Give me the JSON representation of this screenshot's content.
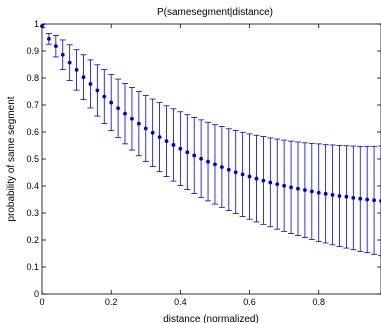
{
  "chart_data": {
    "type": "scatter",
    "title": "P(samesegment|distance)",
    "xlabel": "distance (normalized)",
    "ylabel": "probability of same segment",
    "xlim": [
      0,
      0.98
    ],
    "ylim": [
      0,
      1
    ],
    "xticks": [
      0,
      0.2,
      0.4,
      0.6,
      0.8
    ],
    "yticks": [
      0,
      0.1,
      0.2,
      0.3,
      0.4,
      0.5,
      0.6,
      0.7,
      0.8,
      0.9,
      1
    ],
    "xtick_labels": [
      "0",
      "0.2",
      "0.4",
      "0.6",
      "0.8"
    ],
    "ytick_labels": [
      "0",
      "0.1",
      "0.2",
      "0.3",
      "0.4",
      "0.5",
      "0.6",
      "0.7",
      "0.8",
      "0.9",
      "1"
    ],
    "grid": false,
    "color": "#0000cc",
    "series": [
      {
        "x": [
          0,
          0.02,
          0.04,
          0.06,
          0.08,
          0.1,
          0.12,
          0.14,
          0.16,
          0.18,
          0.2,
          0.22,
          0.24,
          0.26,
          0.28,
          0.3,
          0.32,
          0.34,
          0.36,
          0.38,
          0.4,
          0.42,
          0.44,
          0.46,
          0.48,
          0.5,
          0.52,
          0.54,
          0.56,
          0.58,
          0.6,
          0.62,
          0.64,
          0.66,
          0.68,
          0.7,
          0.72,
          0.74,
          0.76,
          0.78,
          0.8,
          0.82,
          0.84,
          0.86,
          0.88,
          0.9,
          0.92,
          0.94,
          0.96,
          0.98
        ],
        "y": [
          0.992,
          0.945,
          0.918,
          0.886,
          0.857,
          0.83,
          0.803,
          0.778,
          0.754,
          0.731,
          0.709,
          0.688,
          0.668,
          0.649,
          0.631,
          0.613,
          0.597,
          0.581,
          0.566,
          0.552,
          0.538,
          0.525,
          0.513,
          0.501,
          0.49,
          0.48,
          0.47,
          0.46,
          0.451,
          0.443,
          0.435,
          0.427,
          0.42,
          0.413,
          0.407,
          0.401,
          0.395,
          0.39,
          0.385,
          0.38,
          0.375,
          0.371,
          0.367,
          0.363,
          0.36,
          0.356,
          0.353,
          0.35,
          0.347,
          0.345
        ],
        "lower": [
          0.986,
          0.925,
          0.878,
          0.831,
          0.791,
          0.755,
          0.72,
          0.689,
          0.659,
          0.631,
          0.605,
          0.58,
          0.556,
          0.533,
          0.512,
          0.491,
          0.472,
          0.453,
          0.435,
          0.418,
          0.402,
          0.387,
          0.372,
          0.358,
          0.345,
          0.333,
          0.321,
          0.309,
          0.298,
          0.287,
          0.277,
          0.267,
          0.258,
          0.249,
          0.24,
          0.232,
          0.224,
          0.217,
          0.209,
          0.202,
          0.195,
          0.189,
          0.182,
          0.176,
          0.17,
          0.164,
          0.158,
          0.153,
          0.147,
          0.142
        ],
        "upper": [
          0.998,
          0.965,
          0.958,
          0.941,
          0.923,
          0.905,
          0.886,
          0.867,
          0.849,
          0.831,
          0.813,
          0.796,
          0.78,
          0.765,
          0.75,
          0.735,
          0.722,
          0.709,
          0.697,
          0.686,
          0.675,
          0.664,
          0.654,
          0.645,
          0.636,
          0.627,
          0.62,
          0.612,
          0.606,
          0.599,
          0.593,
          0.588,
          0.583,
          0.578,
          0.574,
          0.57,
          0.566,
          0.563,
          0.56,
          0.558,
          0.556,
          0.553,
          0.552,
          0.55,
          0.549,
          0.548,
          0.547,
          0.547,
          0.547,
          0.548
        ]
      }
    ]
  }
}
